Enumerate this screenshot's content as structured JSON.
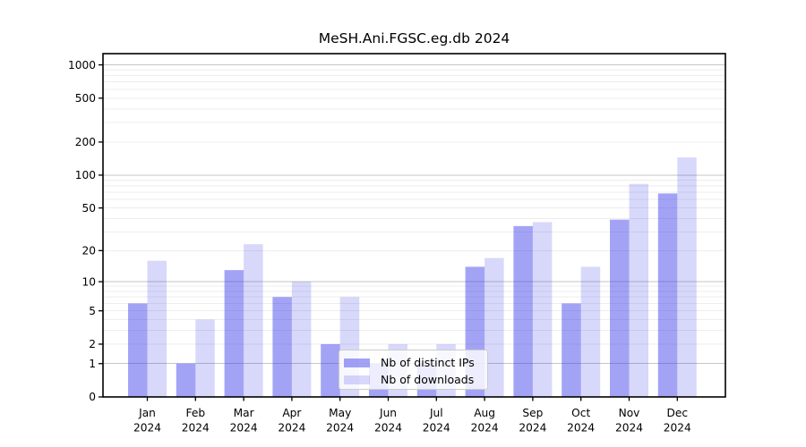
{
  "chart_data": {
    "type": "bar",
    "title": "MeSH.Ani.FGSC.eg.db 2024",
    "categories": [
      "Jan",
      "Feb",
      "Mar",
      "Apr",
      "May",
      "Jun",
      "Jul",
      "Aug",
      "Sep",
      "Oct",
      "Nov",
      "Dec"
    ],
    "x_year": "2024",
    "series": [
      {
        "name": "Nb of distinct IPs",
        "color": "rgba(50,50,235,0.45)",
        "values": [
          6,
          1,
          13,
          7,
          2,
          1,
          1,
          14,
          34,
          6,
          39,
          68
        ]
      },
      {
        "name": "Nb of downloads",
        "color": "rgba(50,50,235,0.19)",
        "values": [
          16,
          4,
          23,
          10,
          7,
          2,
          2,
          17,
          37,
          14,
          83,
          145
        ]
      }
    ],
    "yscale": "log10(1+v)",
    "yticks": [
      0,
      1,
      2,
      5,
      10,
      20,
      50,
      100,
      200,
      500,
      1000
    ],
    "major_gridlines": [
      1,
      10,
      100,
      1000
    ],
    "ylim": [
      0,
      1264
    ],
    "xlabel": "",
    "ylabel": "",
    "grid": true,
    "legend_position": "lower-center-inside"
  },
  "colors": {
    "bar_dark": "rgba(50,50,235,0.45)",
    "bar_light": "rgba(50,50,235,0.19)",
    "major_grid": "#c6c6c6",
    "minor_grid": "#ededed",
    "axis": "#000000",
    "legend_border": "#cccccc"
  }
}
